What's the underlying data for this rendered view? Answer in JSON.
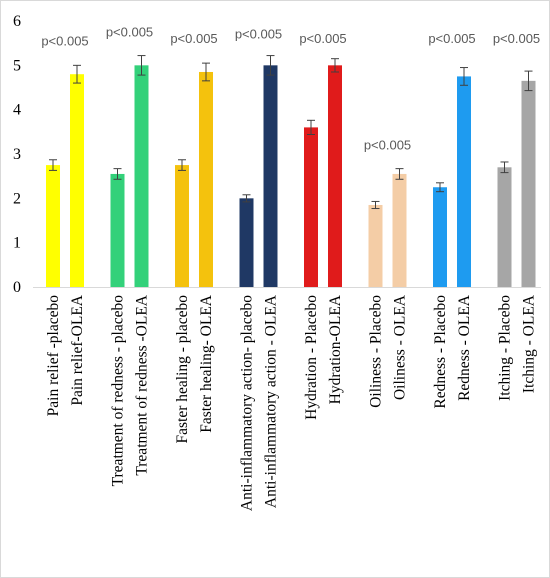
{
  "chart_data": {
    "type": "bar",
    "ylim": [
      0,
      6
    ],
    "yticks": [
      "0",
      "1",
      "2",
      "3",
      "4",
      "5",
      "6"
    ],
    "grid": false,
    "legend": "none",
    "categories": [
      "Pain relief -placebo",
      "Pain relief-OLEA",
      "Treatment of redness - placebo",
      "Treatment of redness -OLEA",
      "Faster healing - placebo",
      "Faster healing- OLEA",
      "Anti-inflammatory action- placebo",
      "Anti-inflammatory action - OLEA",
      "Hydration - Placebo",
      "Hydration-OLEA",
      "Oiliness - Placebo",
      "Oiliness - OLEA",
      "Redness - Placebo",
      "Redness - OLEA",
      "Itching - Placebo",
      "Itching - OLEA"
    ],
    "values": [
      2.75,
      4.8,
      2.55,
      5.0,
      2.75,
      4.85,
      2.0,
      5.0,
      3.6,
      5.0,
      1.85,
      2.55,
      2.25,
      4.75,
      2.7,
      4.65
    ],
    "errors": [
      0.12,
      0.2,
      0.12,
      0.22,
      0.12,
      0.2,
      0.08,
      0.22,
      0.16,
      0.15,
      0.08,
      0.12,
      0.1,
      0.2,
      0.12,
      0.22
    ],
    "colors": [
      "#ffff00",
      "#ffff00",
      "#33d17a",
      "#33d17a",
      "#f4c20d",
      "#f4c20d",
      "#1f3864",
      "#1f3864",
      "#e01b1b",
      "#e01b1b",
      "#f4cda6",
      "#f4cda6",
      "#1e9bf0",
      "#1e9bf0",
      "#a6a6a6",
      "#a6a6a6"
    ],
    "annotations": [
      {
        "text": "p<0.005",
        "x": 0.5,
        "y": 5.45
      },
      {
        "text": "p<0.005",
        "x": 2.5,
        "y": 5.65
      },
      {
        "text": "p<0.005",
        "x": 4.5,
        "y": 5.5
      },
      {
        "text": "p<0.005",
        "x": 6.5,
        "y": 5.6
      },
      {
        "text": "p<0.005",
        "x": 8.5,
        "y": 5.5
      },
      {
        "text": "p<0.005",
        "x": 10.5,
        "y": 3.1
      },
      {
        "text": "p<0.005",
        "x": 12.5,
        "y": 5.5
      },
      {
        "text": "p<0.005",
        "x": 14.5,
        "y": 5.5
      }
    ]
  }
}
